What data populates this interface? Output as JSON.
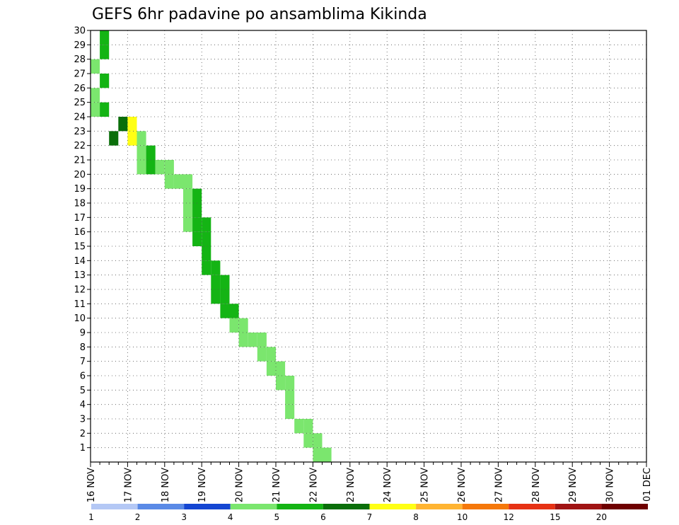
{
  "chart_data": {
    "type": "heatmap",
    "title": "GEFS 6hr padavine po ansamblima Kikinda",
    "xlabel": "",
    "ylabel": "",
    "y_ticks": [
      1,
      2,
      3,
      4,
      5,
      6,
      7,
      8,
      9,
      10,
      11,
      12,
      13,
      14,
      15,
      16,
      17,
      18,
      19,
      20,
      21,
      22,
      23,
      24,
      25,
      26,
      27,
      28,
      29,
      30
    ],
    "ylim": [
      0,
      30
    ],
    "x_range_steps": [
      0,
      60
    ],
    "x_step_hours": 6,
    "x_ticks": [
      {
        "step": 0,
        "label": "16 NOV"
      },
      {
        "step": 4,
        "label": "17 NOV"
      },
      {
        "step": 8,
        "label": "18 NOV"
      },
      {
        "step": 12,
        "label": "19 NOV"
      },
      {
        "step": 16,
        "label": "20 NOV"
      },
      {
        "step": 20,
        "label": "21 NOV"
      },
      {
        "step": 24,
        "label": "22 NOV"
      },
      {
        "step": 28,
        "label": "23 NOV"
      },
      {
        "step": 32,
        "label": "24 NOV"
      },
      {
        "step": 36,
        "label": "25 NOV"
      },
      {
        "step": 40,
        "label": "26 NOV"
      },
      {
        "step": 44,
        "label": "27 NOV"
      },
      {
        "step": 48,
        "label": "28 NOV"
      },
      {
        "step": 52,
        "label": "29 NOV"
      },
      {
        "step": 56,
        "label": "30 NOV"
      },
      {
        "step": 60,
        "label": "01 DEC"
      }
    ],
    "grid": true,
    "legend_position": "bottom",
    "legend_labels": [
      "1",
      "2",
      "3",
      "4",
      "5",
      "6",
      "7",
      "8",
      "10",
      "12",
      "15",
      "20"
    ],
    "legend_colors": [
      "#b4c8f5",
      "#5a8ae6",
      "#1446d2",
      "#7be66e",
      "#14b414",
      "#0a6e0a",
      "#ffff14",
      "#ffb432",
      "#f5780a",
      "#e63214",
      "#a01414",
      "#6e0000"
    ],
    "cells": [
      [
        29,
        1,
        4
      ],
      [
        28,
        1,
        4
      ],
      [
        27,
        0,
        3
      ],
      [
        26,
        1,
        4
      ],
      [
        25,
        0,
        3
      ],
      [
        24,
        0,
        3
      ],
      [
        24,
        1,
        4
      ],
      [
        23,
        3,
        5
      ],
      [
        23,
        4,
        6
      ],
      [
        22,
        2,
        5
      ],
      [
        22,
        4,
        6
      ],
      [
        22,
        5,
        3
      ],
      [
        21,
        5,
        3
      ],
      [
        21,
        6,
        4
      ],
      [
        20,
        5,
        3
      ],
      [
        20,
        6,
        4
      ],
      [
        20,
        7,
        3
      ],
      [
        20,
        8,
        3
      ],
      [
        19,
        8,
        3
      ],
      [
        19,
        9,
        3
      ],
      [
        19,
        10,
        3
      ],
      [
        18,
        10,
        3
      ],
      [
        18,
        11,
        4
      ],
      [
        17,
        10,
        3
      ],
      [
        17,
        11,
        4
      ],
      [
        16,
        10,
        3
      ],
      [
        16,
        11,
        4
      ],
      [
        16,
        12,
        4
      ],
      [
        15,
        11,
        4
      ],
      [
        15,
        12,
        4
      ],
      [
        14,
        12,
        4
      ],
      [
        13,
        12,
        4
      ],
      [
        13,
        13,
        4
      ],
      [
        12,
        13,
        4
      ],
      [
        12,
        14,
        4
      ],
      [
        11,
        13,
        4
      ],
      [
        11,
        14,
        4
      ],
      [
        10,
        14,
        4
      ],
      [
        10,
        15,
        4
      ],
      [
        9,
        15,
        3
      ],
      [
        9,
        16,
        3
      ],
      [
        8,
        16,
        3
      ],
      [
        8,
        17,
        3
      ],
      [
        8,
        18,
        3
      ],
      [
        7,
        18,
        3
      ],
      [
        7,
        19,
        3
      ],
      [
        6,
        19,
        3
      ],
      [
        6,
        20,
        3
      ],
      [
        5,
        20,
        3
      ],
      [
        5,
        21,
        3
      ],
      [
        4,
        21,
        3
      ],
      [
        3,
        21,
        3
      ],
      [
        2,
        22,
        3
      ],
      [
        2,
        23,
        3
      ],
      [
        1,
        23,
        3
      ],
      [
        1,
        24,
        3
      ],
      [
        0,
        24,
        3
      ],
      [
        0,
        25,
        3
      ]
    ]
  }
}
